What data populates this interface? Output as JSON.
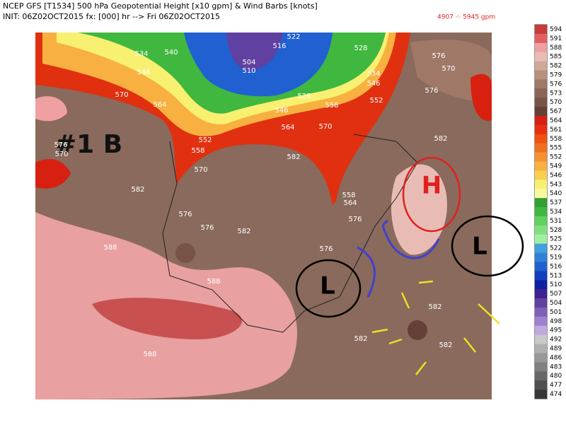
{
  "header": {
    "line1": "NCEP GFS [T1534] 500 hPa Geopotential Height [x10 gpm] & Wind Barbs [knots]",
    "line2": "INIT: 06Z02OCT2015  fx: [000] hr --> Fri 06Z02OCT2015",
    "range": "4907 ⁘ 5945 gpm"
  },
  "map": {
    "contour_labels": [
      "534",
      "540",
      "546",
      "522",
      "516",
      "504",
      "510",
      "528",
      "534",
      "546",
      "552",
      "558",
      "564",
      "570",
      "576",
      "570",
      "576",
      "546",
      "528",
      "564",
      "570",
      "552",
      "558",
      "570",
      "582",
      "582",
      "570",
      "576",
      "582",
      "576",
      "576",
      "582",
      "576",
      "558",
      "564",
      "576",
      "588",
      "588",
      "582",
      "582",
      "582",
      "588"
    ],
    "annotations": {
      "system": "#1 B",
      "high": "H",
      "low_west": "L",
      "low_east": "L"
    }
  },
  "colorbar": {
    "labels": [
      "594",
      "591",
      "588",
      "585",
      "582",
      "579",
      "576",
      "573",
      "570",
      "567",
      "564",
      "561",
      "558",
      "555",
      "552",
      "549",
      "546",
      "543",
      "540",
      "537",
      "534",
      "531",
      "528",
      "525",
      "522",
      "519",
      "516",
      "513",
      "510",
      "507",
      "504",
      "501",
      "498",
      "495",
      "492",
      "489",
      "486",
      "483",
      "480",
      "477",
      "474"
    ],
    "colors": [
      "#c83c3c",
      "#e06060",
      "#f0a0a0",
      "#e8bcb4",
      "#d0a898",
      "#b89080",
      "#a07868",
      "#8c6458",
      "#785448",
      "#644038",
      "#d82010",
      "#e83010",
      "#f05010",
      "#f07020",
      "#f89030",
      "#f8b040",
      "#f8d050",
      "#f8f070",
      "#f8f8a0",
      "#30a030",
      "#40b840",
      "#60d060",
      "#80e080",
      "#a0f0a0",
      "#40a0e0",
      "#3080d8",
      "#2060d0",
      "#1040c0",
      "#1020a0",
      "#402090",
      "#6040a0",
      "#8060b8",
      "#a080d0",
      "#c0a8e0",
      "#c8c8c8",
      "#b0b0b0",
      "#989898",
      "#808080",
      "#686868",
      "#505050",
      "#383838"
    ]
  }
}
